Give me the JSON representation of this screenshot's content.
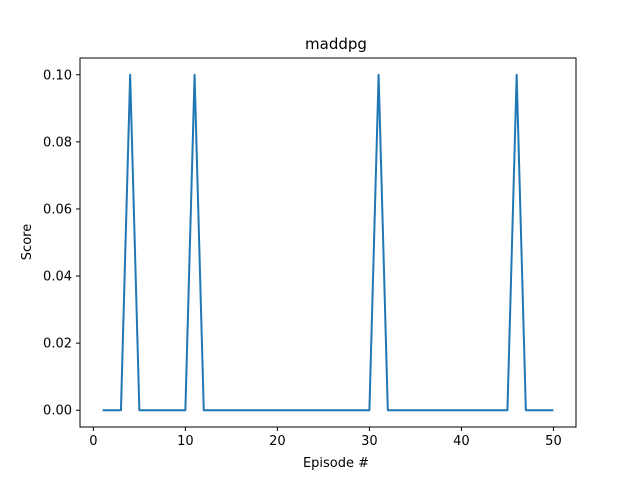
{
  "chart_data": {
    "type": "line",
    "title": "maddpg",
    "xlabel": "Episode #",
    "ylabel": "Score",
    "xlim": [
      -1.45,
      52.45
    ],
    "ylim": [
      -0.005,
      0.105
    ],
    "xticks": [
      0,
      10,
      20,
      30,
      40,
      50
    ],
    "xtick_labels": [
      "0",
      "10",
      "20",
      "30",
      "40",
      "50"
    ],
    "yticks": [
      0.0,
      0.02,
      0.04,
      0.06,
      0.08,
      0.1
    ],
    "ytick_labels": [
      "0.00",
      "0.02",
      "0.04",
      "0.06",
      "0.08",
      "0.10"
    ],
    "grid": false,
    "series": [
      {
        "color": "#1f77b4",
        "x": [
          1,
          2,
          3,
          4,
          5,
          6,
          7,
          8,
          9,
          10,
          11,
          12,
          13,
          14,
          15,
          16,
          17,
          18,
          19,
          20,
          21,
          22,
          23,
          24,
          25,
          26,
          27,
          28,
          29,
          30,
          31,
          32,
          33,
          34,
          35,
          36,
          37,
          38,
          39,
          40,
          41,
          42,
          43,
          44,
          45,
          46,
          47,
          48,
          49,
          50
        ],
        "y": [
          0,
          0,
          0,
          0.1,
          0,
          0,
          0,
          0,
          0,
          0,
          0.1,
          0,
          0,
          0,
          0,
          0,
          0,
          0,
          0,
          0,
          0,
          0,
          0,
          0,
          0,
          0,
          0,
          0,
          0,
          0,
          0.1,
          0,
          0,
          0,
          0,
          0,
          0,
          0,
          0,
          0,
          0,
          0,
          0,
          0,
          0,
          0.1,
          0,
          0,
          0,
          0
        ]
      }
    ]
  }
}
